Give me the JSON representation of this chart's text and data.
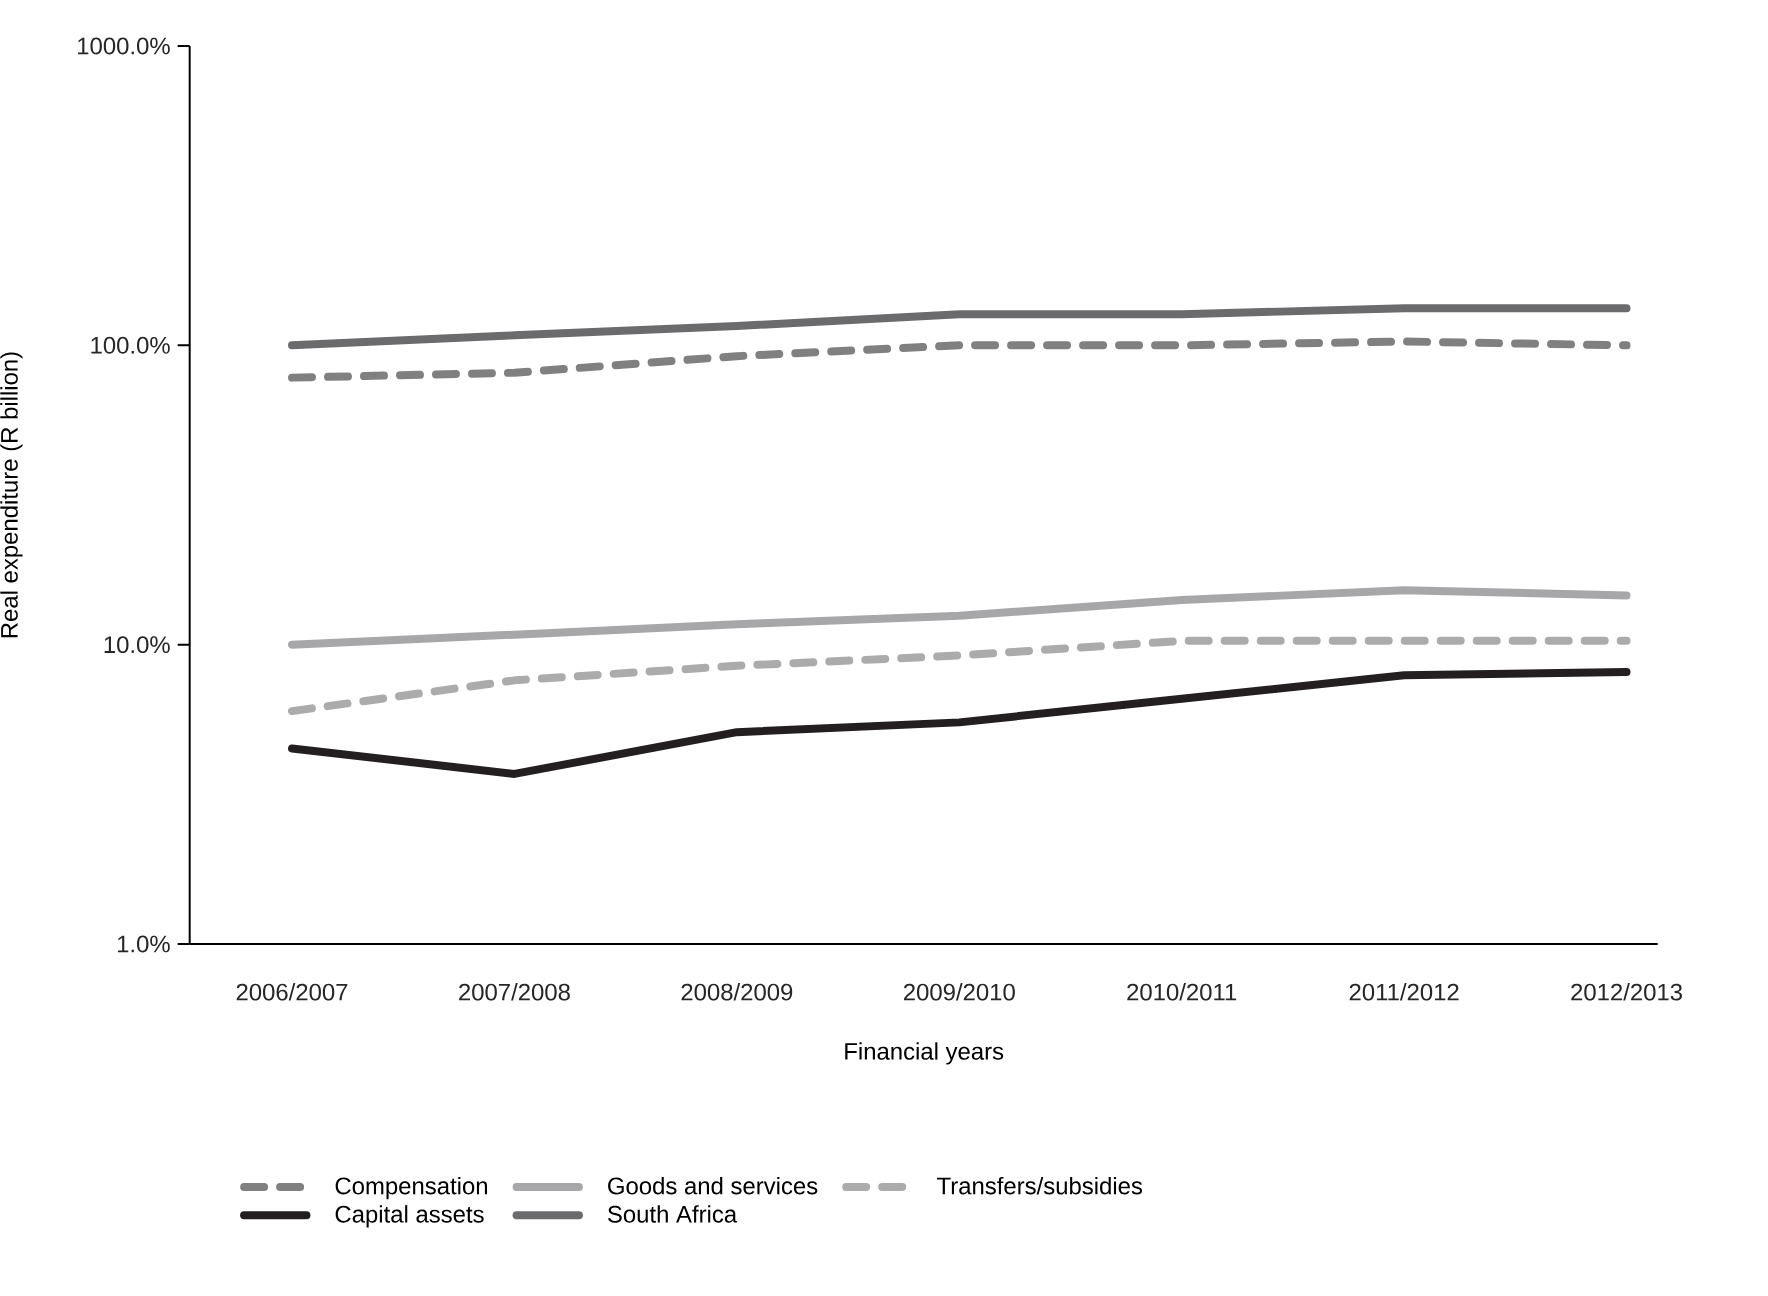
{
  "chart_data": {
    "type": "line",
    "xlabel": "Financial years",
    "ylabel": "Real expenditure (R billion)",
    "categories": [
      "2006/2007",
      "2007/2008",
      "2008/2009",
      "2009/2010",
      "2010/2011",
      "2011/2012",
      "2012/2013"
    ],
    "series": [
      {
        "name": "Compensation",
        "color": "#808080",
        "line_style": "dashed",
        "values": [
          78,
          81,
          92,
          100,
          100,
          103,
          100
        ]
      },
      {
        "name": "Goods and services",
        "color": "#a7a7aa",
        "line_style": "solid",
        "values": [
          10.0,
          10.8,
          11.7,
          12.5,
          14.1,
          15.2,
          14.6
        ]
      },
      {
        "name": "Transfers/subsidies",
        "color": "#ababab",
        "line_style": "dashed",
        "values": [
          6.0,
          7.6,
          8.5,
          9.2,
          10.3,
          10.3,
          10.3
        ]
      },
      {
        "name": "Capital assets",
        "color": "#231f20",
        "line_style": "solid",
        "values": [
          4.5,
          3.7,
          5.1,
          5.5,
          6.6,
          7.9,
          8.1
        ]
      },
      {
        "name": "South Africa",
        "color": "#6b6b6e",
        "line_style": "solid",
        "values": [
          100,
          108,
          116,
          127,
          127,
          133,
          133
        ]
      }
    ],
    "log": true,
    "ylim": [
      1,
      1000
    ],
    "yticks": [
      {
        "value": 1,
        "label": "1.0%"
      },
      {
        "value": 10,
        "label": "10.0%"
      },
      {
        "value": 100,
        "label": "100.0%"
      },
      {
        "value": 1000,
        "label": "1000.0%"
      }
    ],
    "grid": false,
    "legend": "bottom",
    "marker": "none"
  }
}
